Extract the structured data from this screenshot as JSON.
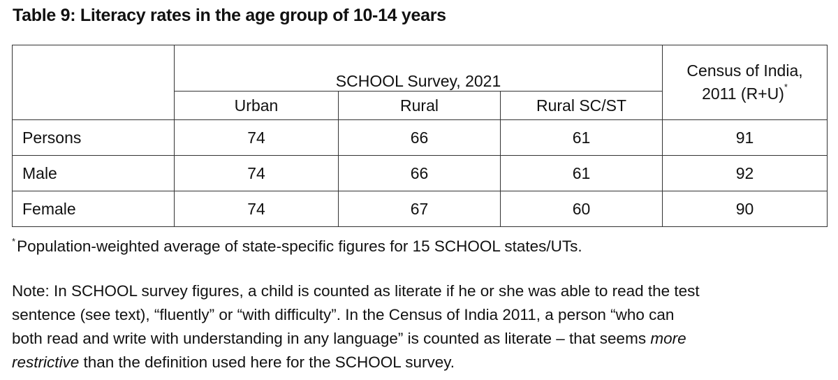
{
  "title": "Table 9: Literacy rates in the age group of 10-14 years",
  "table": {
    "survey_header": "SCHOOL Survey, 2021",
    "census_header_line1": "Census of India,",
    "census_header_line2": "2011 (R+U)",
    "census_marker": "*",
    "columns": [
      "Urban",
      "Rural",
      "Rural SC/ST"
    ],
    "rows": [
      {
        "label": "Persons",
        "values": [
          "74",
          "66",
          "61",
          "91"
        ]
      },
      {
        "label": "Male",
        "values": [
          "74",
          "66",
          "61",
          "92"
        ]
      },
      {
        "label": "Female",
        "values": [
          "74",
          "67",
          "60",
          "90"
        ]
      }
    ]
  },
  "footnote": {
    "marker": "*",
    "text": "Population-weighted average of state-specific figures for 15 SCHOOL states/UTs."
  },
  "note": {
    "line1": "Note: In SCHOOL survey figures, a child is counted as literate if he or she was able to read the test",
    "line2": "sentence (see text), “fluently” or “with difficulty”. In the Census of India 2011, a person “who can",
    "line3_start": "both read and write with understanding in any language” is counted as literate – that seems ",
    "line3_italic": "more",
    "line4_italic": "restrictive",
    "line4_end": " than the definition used here for the SCHOOL survey."
  }
}
